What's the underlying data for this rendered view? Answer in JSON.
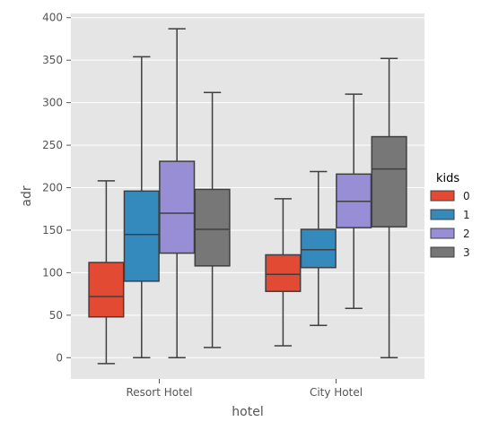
{
  "chart_data": {
    "type": "box",
    "xlabel": "hotel",
    "ylabel": "adr",
    "categories": [
      "Resort Hotel",
      "City Hotel"
    ],
    "ylim": [
      -25,
      405
    ],
    "yticks": [
      0,
      50,
      100,
      150,
      200,
      250,
      300,
      350,
      400
    ],
    "grid": true,
    "legend": {
      "title": "kids",
      "placement": "right"
    },
    "series": [
      {
        "name": "0",
        "color": "#e24a33",
        "boxes": [
          {
            "whisker_low": -7,
            "q1": 48,
            "median": 72,
            "q3": 112,
            "whisker_high": 208
          },
          {
            "whisker_low": 14,
            "q1": 78,
            "median": 98,
            "q3": 121,
            "whisker_high": 187
          }
        ]
      },
      {
        "name": "1",
        "color": "#348abd",
        "boxes": [
          {
            "whisker_low": 0,
            "q1": 90,
            "median": 145,
            "q3": 196,
            "whisker_high": 354
          },
          {
            "whisker_low": 38,
            "q1": 106,
            "median": 127,
            "q3": 151,
            "whisker_high": 219
          }
        ]
      },
      {
        "name": "2",
        "color": "#988ed5",
        "boxes": [
          {
            "whisker_low": 0,
            "q1": 123,
            "median": 170,
            "q3": 231,
            "whisker_high": 387
          },
          {
            "whisker_low": 58,
            "q1": 153,
            "median": 184,
            "q3": 216,
            "whisker_high": 310
          }
        ]
      },
      {
        "name": "3",
        "color": "#777777",
        "boxes": [
          {
            "whisker_low": 12,
            "q1": 108,
            "median": 151,
            "q3": 198,
            "whisker_high": 312
          },
          {
            "whisker_low": 0,
            "q1": 154,
            "median": 222,
            "q3": 260,
            "whisker_high": 352
          }
        ]
      }
    ]
  }
}
